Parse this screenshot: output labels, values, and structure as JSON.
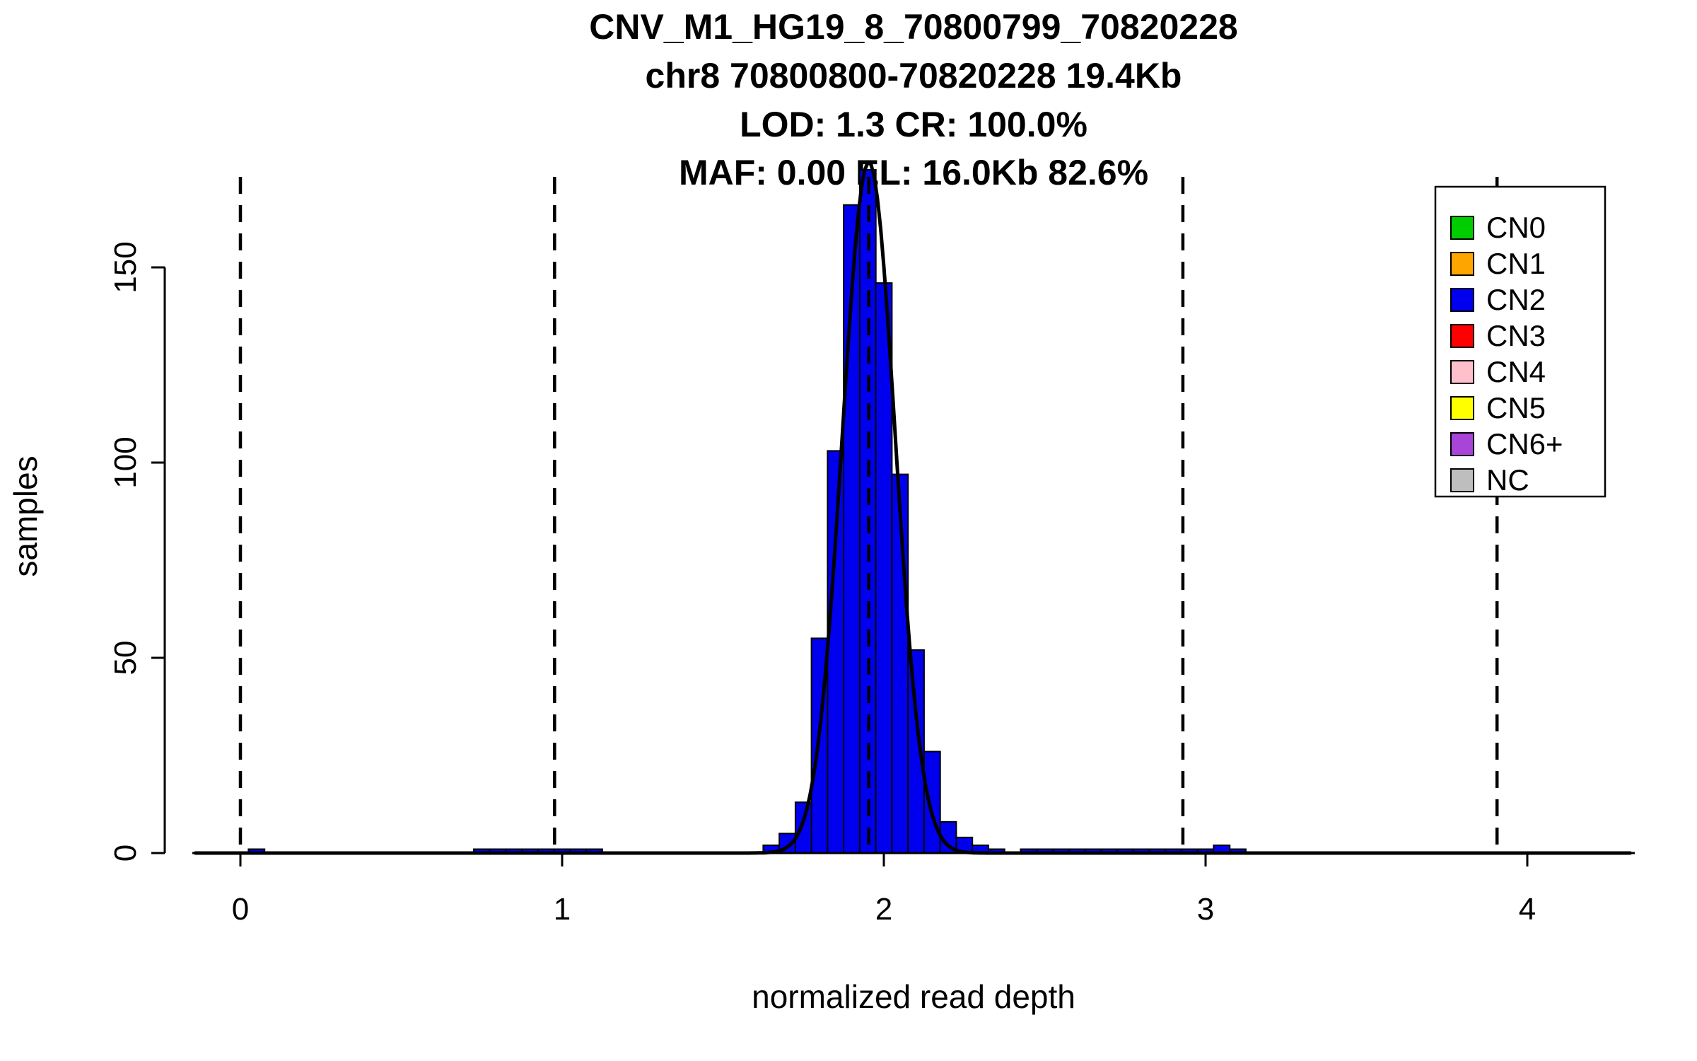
{
  "chart_data": {
    "type": "bar",
    "subtype": "histogram-with-density-curve",
    "title_lines": [
      "CNV_M1_HG19_8_70800799_70820228",
      "chr8 70800800-70820228 19.4Kb",
      "LOD: 1.3 CR: 100.0%",
      "MAF: 0.00 EL: 16.0Kb 82.6%"
    ],
    "xlabel": "normalized read depth",
    "ylabel": "samples",
    "xlim": [
      -0.15,
      4.33
    ],
    "ylim": [
      0,
      176
    ],
    "x_ticks": [
      0,
      1,
      2,
      3,
      4
    ],
    "y_ticks": [
      0,
      50,
      100,
      150
    ],
    "grid": false,
    "background": "#FFFFFF",
    "axis_color": "#000000",
    "text_color": "#000000",
    "bin_width": 0.05,
    "bar_color": "#0000EE",
    "bar_border_color": "#000000",
    "bins": {
      "x_left": [
        0.025,
        0.725,
        0.775,
        0.825,
        0.875,
        0.925,
        0.975,
        1.025,
        1.075,
        1.625,
        1.675,
        1.725,
        1.775,
        1.825,
        1.875,
        1.925,
        1.975,
        2.025,
        2.075,
        2.125,
        2.175,
        2.225,
        2.275,
        2.325,
        2.425,
        2.475,
        2.525,
        2.575,
        2.625,
        2.675,
        2.725,
        2.775,
        2.825,
        2.875,
        2.925,
        2.975,
        3.025,
        3.075
      ],
      "counts": [
        1,
        1,
        1,
        1,
        1,
        1,
        1,
        1,
        1,
        2,
        5,
        13,
        55,
        103,
        166,
        175,
        146,
        97,
        52,
        26,
        8,
        4,
        2,
        1,
        1,
        1,
        1,
        1,
        1,
        1,
        1,
        1,
        1,
        1,
        1,
        1,
        2,
        1
      ]
    },
    "density_curve": {
      "mean": 1.953,
      "sd": 0.082,
      "peak": 177,
      "color": "#000000"
    },
    "dashed_lines": {
      "x_values": [
        0,
        0.9765,
        1.953,
        2.9295,
        3.906
      ],
      "color": "#000000"
    },
    "legend": {
      "position": "top-right",
      "entries": [
        {
          "label": "CN0",
          "color": "#00CD00"
        },
        {
          "label": "CN1",
          "color": "#FFA500"
        },
        {
          "label": "CN2",
          "color": "#0000EE"
        },
        {
          "label": "CN3",
          "color": "#FF0000"
        },
        {
          "label": "CN4",
          "color": "#FFC0CB"
        },
        {
          "label": "CN5",
          "color": "#FFFF00"
        },
        {
          "label": "CN6+",
          "color": "#A845D8"
        },
        {
          "label": "NC",
          "color": "#BEBEBE"
        }
      ]
    }
  }
}
